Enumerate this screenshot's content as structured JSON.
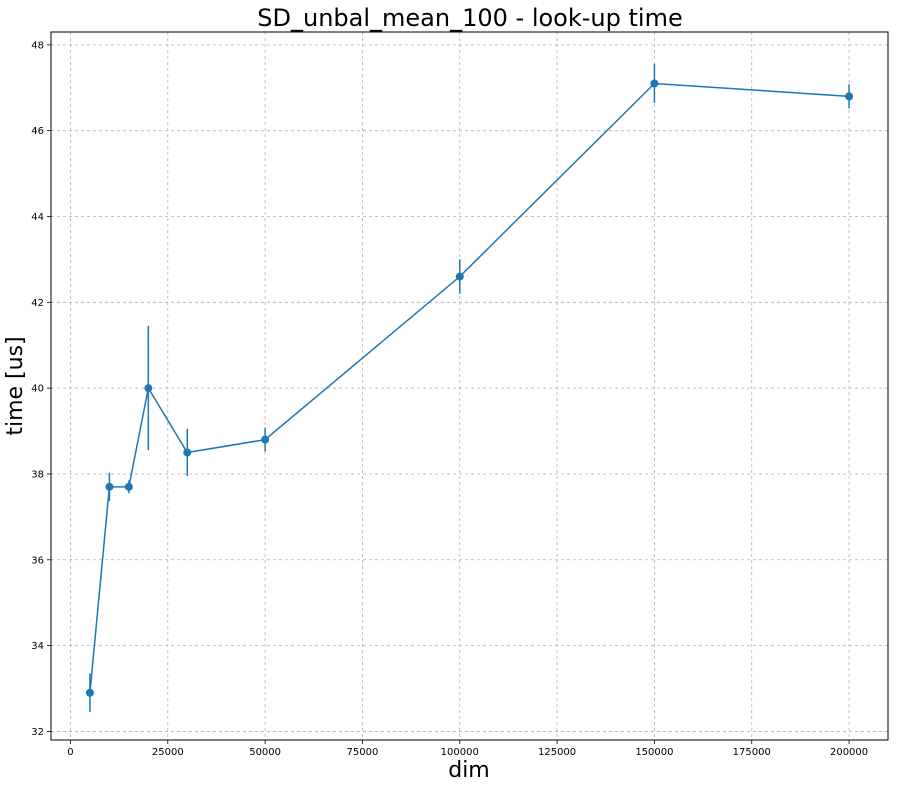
{
  "chart_data": {
    "type": "line",
    "title": "SD_unbal_mean_100 - look-up time",
    "xlabel": "dim",
    "ylabel": "time [us]",
    "xlim": [
      -5000,
      210000
    ],
    "ylim": [
      31.8,
      48.3
    ],
    "xticks": [
      0,
      25000,
      50000,
      75000,
      100000,
      125000,
      150000,
      175000,
      200000
    ],
    "yticks": [
      32,
      34,
      36,
      38,
      40,
      42,
      44,
      46,
      48
    ],
    "grid": true,
    "series": [
      {
        "color": "#1f77b4",
        "marker": "circle",
        "x": [
          5000,
          10000,
          15000,
          20000,
          30000,
          50000,
          100000,
          150000,
          200000
        ],
        "y": [
          32.9,
          37.7,
          37.7,
          40.0,
          38.5,
          38.8,
          42.6,
          47.1,
          46.8
        ],
        "yerr": [
          0.45,
          0.33,
          0.15,
          1.45,
          0.55,
          0.28,
          0.4,
          0.45,
          0.28
        ]
      }
    ]
  }
}
